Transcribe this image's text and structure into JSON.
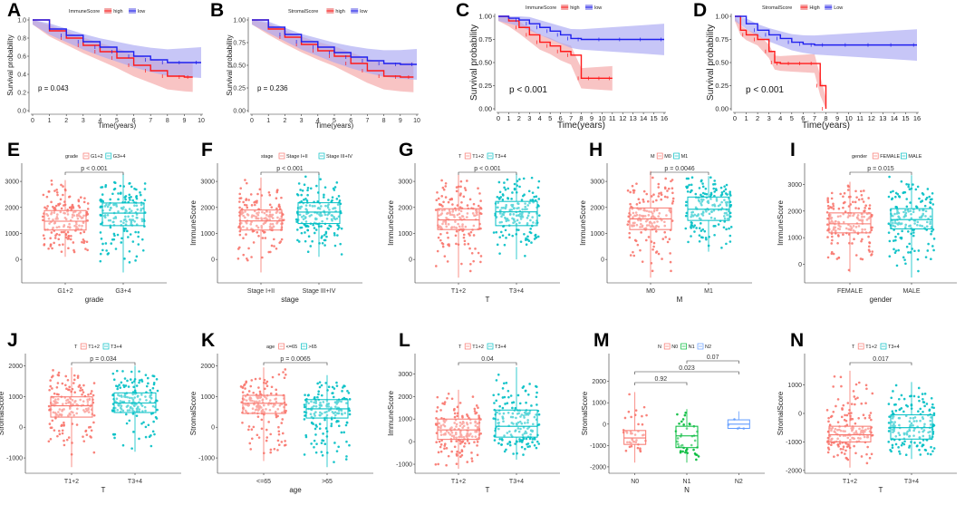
{
  "colors": {
    "red": "#f8766d",
    "teal": "#00bfc4",
    "blue": "#619cff",
    "green": "#00ba38",
    "km_red": "#ff1a1a",
    "km_blue": "#2020ee",
    "km_red_band": "#f4a5a5",
    "km_blue_band": "#a9a7f2"
  },
  "chart_data": [
    {
      "id": "A",
      "label": "A",
      "type": "line",
      "title": "",
      "legend_title": "ImmuneScore",
      "legend": [
        "high",
        "low"
      ],
      "xlabel": "Time(years)",
      "ylabel": "Survival probability",
      "xlim": [
        0,
        10
      ],
      "ylim": [
        0,
        1
      ],
      "xticks": [
        "0",
        "1",
        "2",
        "3",
        "4",
        "5",
        "6",
        "7",
        "8",
        "9",
        "10"
      ],
      "yticks": [
        "0.0",
        "0.2",
        "0.4",
        "0.6",
        "0.8",
        "1.0"
      ],
      "p_value": "p = 0.043",
      "series": [
        {
          "name": "high",
          "x": [
            0,
            1,
            2,
            3,
            4,
            5,
            6,
            7,
            8,
            9,
            9.5
          ],
          "y": [
            1.0,
            0.88,
            0.8,
            0.72,
            0.65,
            0.58,
            0.5,
            0.44,
            0.38,
            0.37,
            0.37
          ]
        },
        {
          "name": "low",
          "x": [
            0,
            1,
            2,
            3,
            4,
            5,
            6,
            7,
            8,
            9,
            10
          ],
          "y": [
            1.0,
            0.9,
            0.83,
            0.76,
            0.7,
            0.65,
            0.6,
            0.56,
            0.53,
            0.53,
            0.53
          ]
        }
      ]
    },
    {
      "id": "B",
      "label": "B",
      "type": "line",
      "title": "",
      "legend_title": "StromalScore",
      "legend": [
        "high",
        "low"
      ],
      "xlabel": "Time(years)",
      "ylabel": "Survival probability",
      "xlim": [
        0,
        10
      ],
      "ylim": [
        0,
        1
      ],
      "xticks": [
        "0",
        "1",
        "2",
        "3",
        "4",
        "5",
        "6",
        "7",
        "8",
        "9",
        "10"
      ],
      "yticks": [
        "0.00",
        "0.25",
        "0.50",
        "0.75",
        "1.00"
      ],
      "p_value": "p = 0.236",
      "series": [
        {
          "name": "high",
          "x": [
            0,
            1,
            2,
            3,
            4,
            5,
            6,
            7,
            8,
            9,
            9.8
          ],
          "y": [
            1.0,
            0.9,
            0.81,
            0.73,
            0.66,
            0.6,
            0.52,
            0.44,
            0.38,
            0.37,
            0.37
          ]
        },
        {
          "name": "low",
          "x": [
            0,
            1,
            2,
            3,
            4,
            5,
            6,
            7,
            8,
            9,
            10
          ],
          "y": [
            1.0,
            0.92,
            0.84,
            0.76,
            0.7,
            0.64,
            0.59,
            0.55,
            0.52,
            0.51,
            0.51
          ]
        }
      ]
    },
    {
      "id": "C",
      "label": "C",
      "type": "line",
      "title": "",
      "legend_title": "ImmuneScore",
      "legend": [
        "high",
        "low"
      ],
      "xlabel": "Time(years)",
      "ylabel": "Survival probability",
      "xlim": [
        0,
        16
      ],
      "ylim": [
        0,
        1
      ],
      "xticks": [
        "0",
        "1",
        "2",
        "3",
        "4",
        "5",
        "6",
        "7",
        "8",
        "9",
        "10",
        "11",
        "12",
        "13",
        "14",
        "15",
        "16"
      ],
      "yticks": [
        "0.00",
        "0.25",
        "0.50",
        "0.75",
        "1.00"
      ],
      "p_value": "p < 0.001",
      "series": [
        {
          "name": "high",
          "x": [
            0,
            1,
            2,
            3,
            4,
            5,
            6,
            7,
            8,
            9,
            10,
            11
          ],
          "y": [
            1.0,
            0.95,
            0.88,
            0.8,
            0.72,
            0.68,
            0.62,
            0.58,
            0.33,
            0.33,
            0.33,
            0.33
          ]
        },
        {
          "name": "low",
          "x": [
            0,
            1,
            2,
            3,
            4,
            5,
            6,
            7,
            8,
            10,
            12,
            14,
            16
          ],
          "y": [
            1.0,
            0.98,
            0.96,
            0.92,
            0.88,
            0.84,
            0.8,
            0.76,
            0.75,
            0.75,
            0.75,
            0.75,
            0.75
          ]
        }
      ]
    },
    {
      "id": "D",
      "label": "D",
      "type": "line",
      "title": "",
      "legend_title": "StromalScore",
      "legend": [
        "High",
        "Low"
      ],
      "xlabel": "Time(years)",
      "ylabel": "Survival probability",
      "xlim": [
        0,
        16
      ],
      "ylim": [
        0,
        1
      ],
      "xticks": [
        "0",
        "1",
        "2",
        "3",
        "4",
        "5",
        "6",
        "7",
        "8",
        "9",
        "10",
        "11",
        "12",
        "13",
        "14",
        "15",
        "16"
      ],
      "yticks": [
        "0.00",
        "0.25",
        "0.50",
        "0.75",
        "1.00"
      ],
      "p_value": "p < 0.001",
      "series": [
        {
          "name": "High",
          "x": [
            0,
            0.5,
            1,
            2,
            3,
            3.5,
            4,
            5,
            6,
            7,
            7.5,
            8
          ],
          "y": [
            1.0,
            0.85,
            0.8,
            0.75,
            0.62,
            0.5,
            0.49,
            0.49,
            0.49,
            0.49,
            0.25,
            0.0
          ]
        },
        {
          "name": "Low",
          "x": [
            0,
            1,
            2,
            3,
            4,
            5,
            6,
            7,
            8,
            10,
            12,
            14,
            16
          ],
          "y": [
            1.0,
            0.92,
            0.85,
            0.8,
            0.76,
            0.72,
            0.7,
            0.69,
            0.69,
            0.69,
            0.69,
            0.69,
            0.69
          ]
        }
      ]
    },
    {
      "id": "E",
      "label": "E",
      "type": "box",
      "legend_title": "grade",
      "legend": [
        "G1+2",
        "G3+4"
      ],
      "categories": [
        "G1+2",
        "G3+4"
      ],
      "xlabel": "grade",
      "ylabel": "ImmuneScore",
      "ylim": [
        -900,
        3700
      ],
      "yticks": [
        0,
        1000,
        2000,
        3000
      ],
      "comparisons": [
        {
          "from": 0,
          "to": 1,
          "label": "p < 0.001"
        }
      ],
      "boxes": [
        {
          "q1": 1130,
          "median": 1470,
          "q3": 1880,
          "min": 100,
          "max": 3050
        },
        {
          "q1": 1300,
          "median": 1780,
          "q3": 2170,
          "min": -500,
          "max": 3300
        }
      ]
    },
    {
      "id": "F",
      "label": "F",
      "type": "box",
      "legend_title": "stage",
      "legend": [
        "Stage I+II",
        "Stage III+IV"
      ],
      "categories": [
        "Stage I+II",
        "Stage III+IV"
      ],
      "xlabel": "stage",
      "ylabel": "ImmuneScore",
      "ylim": [
        -900,
        3700
      ],
      "yticks": [
        0,
        1000,
        2000,
        3000
      ],
      "comparisons": [
        {
          "from": 0,
          "to": 1,
          "label": "p < 0.001"
        }
      ],
      "boxes": [
        {
          "q1": 1130,
          "median": 1480,
          "q3": 1900,
          "min": -500,
          "max": 3150
        },
        {
          "q1": 1380,
          "median": 1820,
          "q3": 2180,
          "min": 100,
          "max": 3300
        }
      ]
    },
    {
      "id": "G",
      "label": "G",
      "type": "box",
      "legend_title": "T",
      "legend": [
        "T1+2",
        "T3+4"
      ],
      "categories": [
        "T1+2",
        "T3+4"
      ],
      "xlabel": "T",
      "ylabel": "ImmuneScore",
      "ylim": [
        -900,
        3700
      ],
      "yticks": [
        0,
        1000,
        2000,
        3000
      ],
      "comparisons": [
        {
          "from": 0,
          "to": 1,
          "label": "p < 0.001"
        }
      ],
      "boxes": [
        {
          "q1": 1150,
          "median": 1520,
          "q3": 1950,
          "min": -700,
          "max": 3250
        },
        {
          "q1": 1300,
          "median": 1830,
          "q3": 2230,
          "min": 0,
          "max": 3300
        }
      ]
    },
    {
      "id": "H",
      "label": "H",
      "type": "box",
      "legend_title": "M",
      "legend": [
        "M0",
        "M1"
      ],
      "categories": [
        "M0",
        "M1"
      ],
      "xlabel": "M",
      "ylabel": "ImmuneScore",
      "ylim": [
        -900,
        3700
      ],
      "yticks": [
        0,
        1000,
        2000,
        3000
      ],
      "comparisons": [
        {
          "from": 0,
          "to": 1,
          "label": "p = 0.0046"
        }
      ],
      "boxes": [
        {
          "q1": 1150,
          "median": 1560,
          "q3": 1980,
          "min": -700,
          "max": 3400
        },
        {
          "q1": 1500,
          "median": 1930,
          "q3": 2400,
          "min": 300,
          "max": 3200
        }
      ]
    },
    {
      "id": "I",
      "label": "I",
      "type": "box",
      "legend_title": "gender",
      "legend": [
        "FEMALE",
        "MALE"
      ],
      "categories": [
        "FEMALE",
        "MALE"
      ],
      "xlabel": "gender",
      "ylabel": "ImmuneScore",
      "ylim": [
        -700,
        3800
      ],
      "yticks": [
        0,
        1000,
        2000,
        3000
      ],
      "comparisons": [
        {
          "from": 0,
          "to": 1,
          "label": "p = 0.015"
        }
      ],
      "boxes": [
        {
          "q1": 1180,
          "median": 1520,
          "q3": 1930,
          "min": -300,
          "max": 3100
        },
        {
          "q1": 1330,
          "median": 1680,
          "q3": 2090,
          "min": -500,
          "max": 3350
        }
      ]
    },
    {
      "id": "J",
      "label": "J",
      "type": "box",
      "legend_title": "T",
      "legend": [
        "T1+2",
        "T3+4"
      ],
      "categories": [
        "T1+2",
        "T3+4"
      ],
      "xlabel": "T",
      "ylabel": "StromalScore",
      "ylim": [
        -1500,
        2400
      ],
      "yticks": [
        -1000,
        0,
        1000,
        2000
      ],
      "comparisons": [
        {
          "from": 0,
          "to": 1,
          "label": "p = 0.034"
        }
      ],
      "boxes": [
        {
          "q1": 330,
          "median": 700,
          "q3": 990,
          "min": -1300,
          "max": 1950
        },
        {
          "q1": 480,
          "median": 790,
          "q3": 1120,
          "min": -800,
          "max": 2000
        }
      ]
    },
    {
      "id": "K",
      "label": "K",
      "type": "box",
      "legend_title": "age",
      "legend": [
        "<=65",
        ">65"
      ],
      "categories": [
        "<=65",
        ">65"
      ],
      "xlabel": "age",
      "ylabel": "StromalScore",
      "ylim": [
        -1500,
        2400
      ],
      "yticks": [
        -1000,
        0,
        1000,
        2000
      ],
      "comparisons": [
        {
          "from": 0,
          "to": 1,
          "label": "p = 0.0065"
        }
      ],
      "boxes": [
        {
          "q1": 450,
          "median": 780,
          "q3": 1040,
          "min": -1100,
          "max": 1950
        },
        {
          "q1": 300,
          "median": 600,
          "q3": 900,
          "min": -1300,
          "max": 1700
        }
      ]
    },
    {
      "id": "L",
      "label": "L",
      "type": "box",
      "legend_title": "T",
      "legend": [
        "T1+2",
        "T3+4"
      ],
      "categories": [
        "T1+2",
        "T3+4"
      ],
      "xlabel": "T",
      "ylabel": "ImmuneScore",
      "ylim": [
        -1400,
        3900
      ],
      "yticks": [
        -1000,
        0,
        1000,
        2000,
        3000
      ],
      "comparisons": [
        {
          "from": 0,
          "to": 1,
          "label": "0.04"
        }
      ],
      "boxes": [
        {
          "q1": 100,
          "median": 520,
          "q3": 1000,
          "min": -1200,
          "max": 2300
        },
        {
          "q1": 200,
          "median": 680,
          "q3": 1400,
          "min": -800,
          "max": 3300
        }
      ]
    },
    {
      "id": "M",
      "label": "M",
      "type": "box",
      "legend_title": "N",
      "legend": [
        "N0",
        "N1",
        "N2"
      ],
      "categories": [
        "N0",
        "N1",
        "N2"
      ],
      "xlabel": "N",
      "ylabel": "StromalScore",
      "ylim": [
        -2300,
        3300
      ],
      "yticks": [
        -2000,
        -1000,
        0,
        1000,
        2000
      ],
      "comparisons": [
        {
          "from": 0,
          "to": 1,
          "label": "0.92"
        },
        {
          "from": 0,
          "to": 2,
          "label": "0.023"
        },
        {
          "from": 1,
          "to": 2,
          "label": "0.07"
        }
      ],
      "boxes": [
        {
          "q1": -950,
          "median": -650,
          "q3": -300,
          "min": -1800,
          "max": 1500
        },
        {
          "q1": -1100,
          "median": -550,
          "q3": -100,
          "min": -1800,
          "max": 700
        },
        {
          "q1": -200,
          "median": 0,
          "q3": 200,
          "min": -200,
          "max": 600
        }
      ]
    },
    {
      "id": "N",
      "label": "N",
      "type": "box",
      "legend_title": "T",
      "legend": [
        "T1+2",
        "T3+4"
      ],
      "categories": [
        "T1+2",
        "T3+4"
      ],
      "xlabel": "T",
      "ylabel": "StromalScore",
      "ylim": [
        -2100,
        2100
      ],
      "yticks": [
        -2000,
        -1000,
        0,
        1000
      ],
      "comparisons": [
        {
          "from": 0,
          "to": 1,
          "label": "0.017"
        }
      ],
      "boxes": [
        {
          "q1": -1000,
          "median": -750,
          "q3": -450,
          "min": -1900,
          "max": 1500
        },
        {
          "q1": -900,
          "median": -500,
          "q3": -50,
          "min": -1600,
          "max": 1100
        }
      ]
    }
  ]
}
